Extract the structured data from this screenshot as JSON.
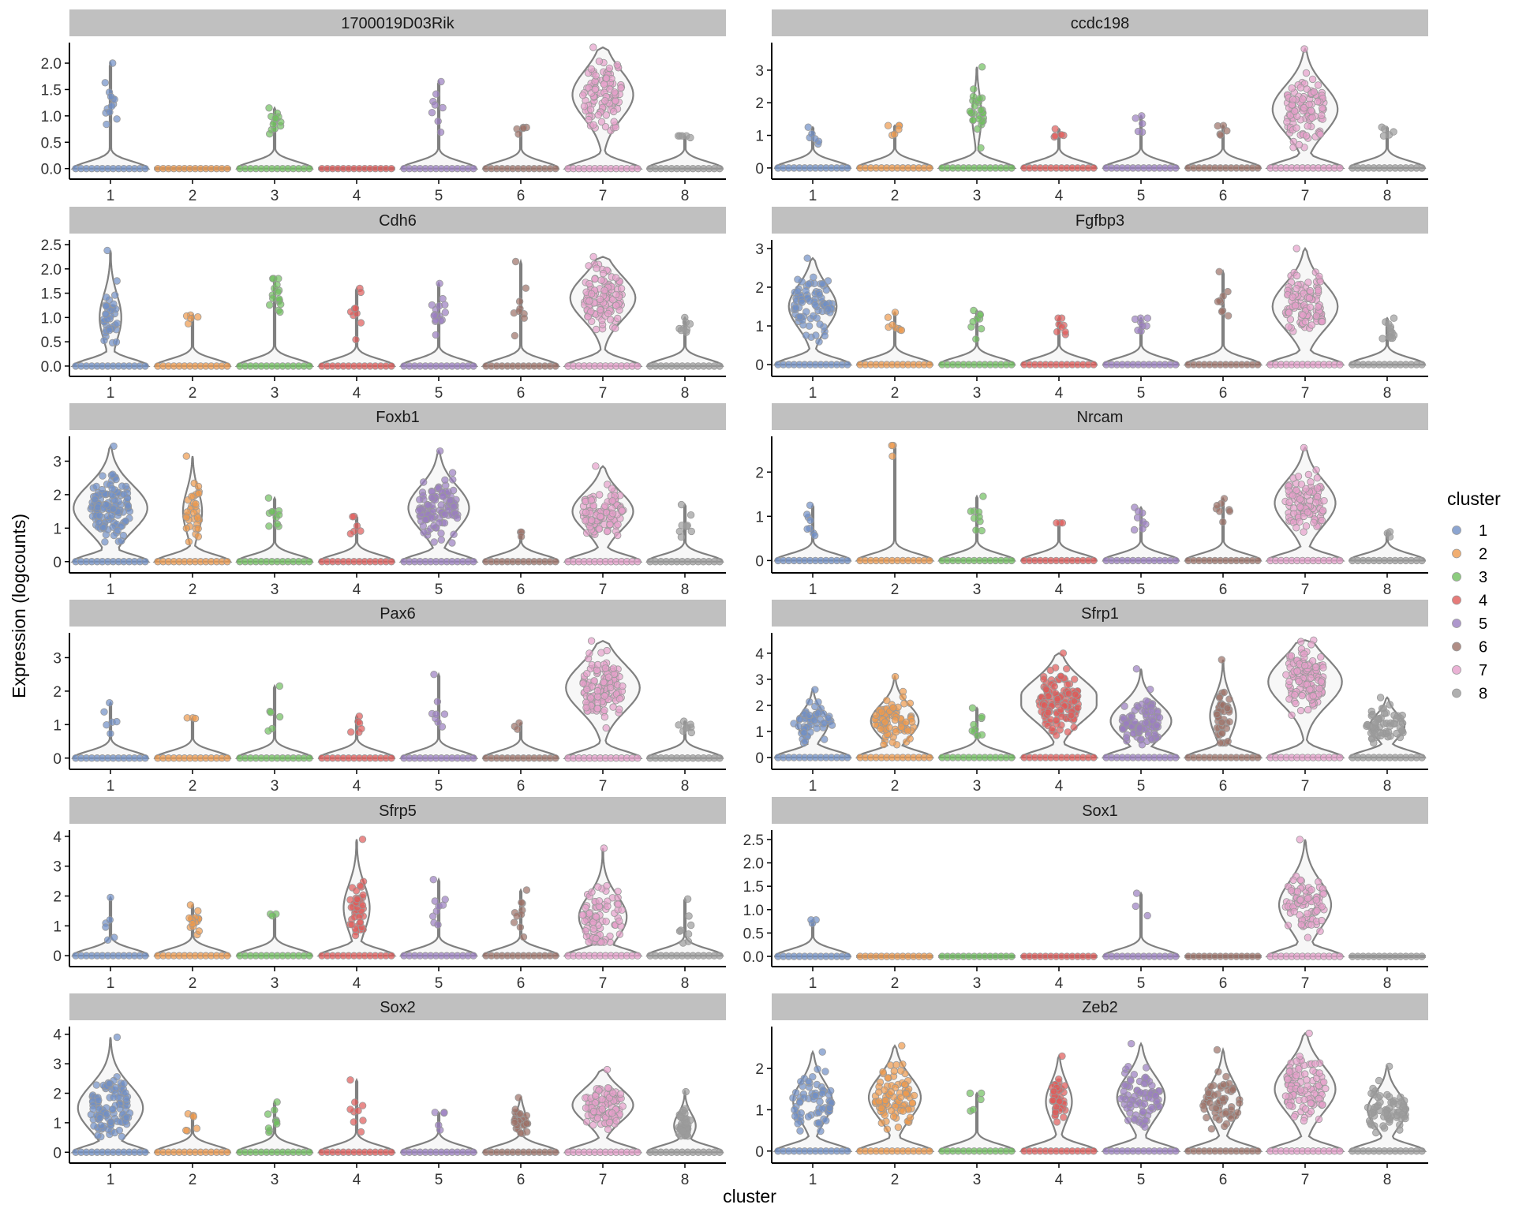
{
  "figure": {
    "ylabel": "Expression (logcounts)",
    "xlabel": "cluster"
  },
  "legend": {
    "title": "cluster",
    "position": "right",
    "items": [
      {
        "label": "1",
        "color": "#6f8fc6"
      },
      {
        "label": "2",
        "color": "#ee9a4d"
      },
      {
        "label": "3",
        "color": "#6fbf5e"
      },
      {
        "label": "4",
        "color": "#e05a58"
      },
      {
        "label": "5",
        "color": "#9a7dc0"
      },
      {
        "label": "6",
        "color": "#9c7067"
      },
      {
        "label": "7",
        "color": "#e59fcb"
      },
      {
        "label": "8",
        "color": "#9b9b9b"
      }
    ]
  },
  "chart_data": [
    {
      "type": "violin",
      "title": "1700019D03Rik",
      "xlabel": "cluster",
      "ylabel": "Expression (logcounts)",
      "categories": [
        "1",
        "2",
        "3",
        "4",
        "5",
        "6",
        "7",
        "8"
      ],
      "ylim": [
        -0.05,
        2.3
      ],
      "yticks": [
        "0.0",
        "0.5",
        "1.0",
        "1.5",
        "2.0"
      ],
      "max_values": [
        2.0,
        0.0,
        1.15,
        0.0,
        1.65,
        0.78,
        2.3,
        0.62
      ],
      "expressing_fraction": [
        0.08,
        0.0,
        0.08,
        0.0,
        0.04,
        0.02,
        0.7,
        0.02
      ],
      "typical_expressed_value": [
        1.1,
        0,
        0.9,
        0,
        1.0,
        0.78,
        1.4,
        0.62
      ]
    },
    {
      "type": "violin",
      "title": "ccdc198",
      "xlabel": "cluster",
      "ylabel": "Expression (logcounts)",
      "categories": [
        "1",
        "2",
        "3",
        "4",
        "5",
        "6",
        "7",
        "8"
      ],
      "ylim": [
        -0.1,
        3.7
      ],
      "yticks": [
        "0",
        "1",
        "2",
        "3"
      ],
      "max_values": [
        1.25,
        1.3,
        3.1,
        1.2,
        1.6,
        1.3,
        3.65,
        1.25
      ],
      "expressing_fraction": [
        0.03,
        0.03,
        0.18,
        0.02,
        0.02,
        0.02,
        0.75,
        0.02
      ],
      "typical_expressed_value": [
        1.0,
        1.1,
        1.6,
        1.1,
        1.3,
        1.2,
        1.8,
        1.1
      ]
    },
    {
      "type": "violin",
      "title": "Cdh6",
      "xlabel": "cluster",
      "ylabel": "Expression (logcounts)",
      "categories": [
        "1",
        "2",
        "3",
        "4",
        "5",
        "6",
        "7",
        "8"
      ],
      "ylim": [
        -0.05,
        2.5
      ],
      "yticks": [
        "0.0",
        "0.5",
        "1.0",
        "1.5",
        "2.0",
        "2.5"
      ],
      "max_values": [
        2.38,
        1.05,
        1.8,
        1.6,
        1.7,
        2.15,
        2.25,
        1.0
      ],
      "expressing_fraction": [
        0.25,
        0.02,
        0.1,
        0.05,
        0.1,
        0.05,
        0.75,
        0.04
      ],
      "typical_expressed_value": [
        1.0,
        1.0,
        1.4,
        1.0,
        1.1,
        1.2,
        1.4,
        0.8
      ]
    },
    {
      "type": "violin",
      "title": "Fgfbp3",
      "xlabel": "cluster",
      "ylabel": "Expression (logcounts)",
      "categories": [
        "1",
        "2",
        "3",
        "4",
        "5",
        "6",
        "7",
        "8"
      ],
      "ylim": [
        -0.1,
        3.1
      ],
      "yticks": [
        "0",
        "1",
        "2",
        "3"
      ],
      "max_values": [
        2.75,
        1.35,
        1.4,
        1.2,
        1.2,
        2.4,
        3.0,
        1.2
      ],
      "expressing_fraction": [
        0.55,
        0.04,
        0.05,
        0.04,
        0.04,
        0.05,
        0.75,
        0.07
      ],
      "typical_expressed_value": [
        1.5,
        1.0,
        1.0,
        1.0,
        1.0,
        1.2,
        1.5,
        0.9
      ]
    },
    {
      "type": "violin",
      "title": "Foxb1",
      "xlabel": "cluster",
      "ylabel": "Expression (logcounts)",
      "categories": [
        "1",
        "2",
        "3",
        "4",
        "5",
        "6",
        "7",
        "8"
      ],
      "ylim": [
        -0.1,
        3.6
      ],
      "yticks": [
        "0",
        "1",
        "2",
        "3"
      ],
      "max_values": [
        3.45,
        3.15,
        1.9,
        1.35,
        3.3,
        0.88,
        2.85,
        1.7
      ],
      "expressing_fraction": [
        0.85,
        0.22,
        0.06,
        0.03,
        0.7,
        0.01,
        0.7,
        0.04
      ],
      "typical_expressed_value": [
        1.6,
        1.5,
        1.3,
        0.9,
        1.6,
        0.88,
        1.5,
        1.0
      ]
    },
    {
      "type": "violin",
      "title": "Nrcam",
      "xlabel": "cluster",
      "ylabel": "Expression (logcounts)",
      "categories": [
        "1",
        "2",
        "3",
        "4",
        "5",
        "6",
        "7",
        "8"
      ],
      "ylim": [
        -0.1,
        2.7
      ],
      "yticks": [
        "0",
        "1",
        "2"
      ],
      "max_values": [
        1.25,
        2.6,
        1.45,
        0.85,
        1.2,
        1.4,
        2.55,
        0.65
      ],
      "expressing_fraction": [
        0.04,
        0.01,
        0.05,
        0.01,
        0.04,
        0.04,
        0.7,
        0.01
      ],
      "typical_expressed_value": [
        0.8,
        2.6,
        0.9,
        0.85,
        0.9,
        1.0,
        1.3,
        0.65
      ]
    },
    {
      "type": "violin",
      "title": "Pax6",
      "xlabel": "cluster",
      "ylabel": "Expression (logcounts)",
      "categories": [
        "1",
        "2",
        "3",
        "4",
        "5",
        "6",
        "7",
        "8"
      ],
      "ylim": [
        -0.1,
        3.6
      ],
      "yticks": [
        "0",
        "1",
        "2",
        "3"
      ],
      "max_values": [
        1.65,
        1.2,
        2.15,
        1.25,
        2.5,
        1.05,
        3.5,
        1.1
      ],
      "expressing_fraction": [
        0.03,
        0.01,
        0.03,
        0.03,
        0.04,
        0.01,
        0.85,
        0.04
      ],
      "typical_expressed_value": [
        1.0,
        1.2,
        1.2,
        0.9,
        1.2,
        1.0,
        2.1,
        0.9
      ]
    },
    {
      "type": "violin",
      "title": "Sfrp1",
      "xlabel": "cluster",
      "ylabel": "Expression (logcounts)",
      "categories": [
        "1",
        "2",
        "3",
        "4",
        "5",
        "6",
        "7",
        "8"
      ],
      "ylim": [
        -0.15,
        4.6
      ],
      "yticks": [
        "0",
        "1",
        "2",
        "3",
        "4"
      ],
      "max_values": [
        2.6,
        3.1,
        1.9,
        4.0,
        3.4,
        3.75,
        4.5,
        2.3
      ],
      "expressing_fraction": [
        0.35,
        0.55,
        0.05,
        0.92,
        0.7,
        0.3,
        0.85,
        0.4
      ],
      "typical_expressed_value": [
        1.3,
        1.4,
        1.0,
        2.2,
        1.4,
        1.6,
        2.9,
        1.2
      ]
    },
    {
      "type": "violin",
      "title": "Sfrp5",
      "xlabel": "cluster",
      "ylabel": "Expression (logcounts)",
      "categories": [
        "1",
        "2",
        "3",
        "4",
        "5",
        "6",
        "7",
        "8"
      ],
      "ylim": [
        -0.1,
        4.05
      ],
      "yticks": [
        "0",
        "1",
        "2",
        "3",
        "4"
      ],
      "max_values": [
        1.95,
        1.7,
        1.4,
        3.9,
        2.55,
        2.2,
        3.6,
        1.9
      ],
      "expressing_fraction": [
        0.03,
        0.1,
        0.01,
        0.3,
        0.05,
        0.06,
        0.55,
        0.04
      ],
      "typical_expressed_value": [
        1.0,
        1.1,
        1.4,
        1.6,
        1.3,
        1.2,
        1.3,
        0.8
      ]
    },
    {
      "type": "violin",
      "title": "Sox1",
      "xlabel": "cluster",
      "ylabel": "Expression (logcounts)",
      "categories": [
        "1",
        "2",
        "3",
        "4",
        "5",
        "6",
        "7",
        "8"
      ],
      "ylim": [
        -0.05,
        2.6
      ],
      "yticks": [
        "0.0",
        "0.5",
        "1.0",
        "1.5",
        "2.0",
        "2.5"
      ],
      "max_values": [
        0.78,
        0.0,
        0.0,
        0.0,
        1.35,
        0.0,
        2.5,
        0.0
      ],
      "expressing_fraction": [
        0.01,
        0.0,
        0.0,
        0.0,
        0.01,
        0.0,
        0.6,
        0.0
      ],
      "typical_expressed_value": [
        0.78,
        0,
        0,
        0,
        1.1,
        0,
        1.1,
        0
      ]
    },
    {
      "type": "violin",
      "title": "Sox2",
      "xlabel": "cluster",
      "ylabel": "Expression (logcounts)",
      "categories": [
        "1",
        "2",
        "3",
        "4",
        "5",
        "6",
        "7",
        "8"
      ],
      "ylim": [
        -0.1,
        4.1
      ],
      "yticks": [
        "0",
        "1",
        "2",
        "3",
        "4"
      ],
      "max_values": [
        3.9,
        1.3,
        1.7,
        2.45,
        1.35,
        1.85,
        2.8,
        2.05
      ],
      "expressing_fraction": [
        0.75,
        0.03,
        0.06,
        0.05,
        0.02,
        0.2,
        0.7,
        0.25
      ],
      "typical_expressed_value": [
        1.5,
        1.0,
        1.0,
        1.2,
        1.0,
        1.1,
        1.6,
        0.9
      ]
    },
    {
      "type": "violin",
      "title": "Zeb2",
      "xlabel": "cluster",
      "ylabel": "Expression (logcounts)",
      "categories": [
        "1",
        "2",
        "3",
        "4",
        "5",
        "6",
        "7",
        "8"
      ],
      "ylim": [
        -0.1,
        2.9
      ],
      "yticks": [
        "0",
        "1",
        "2"
      ],
      "max_values": [
        2.4,
        2.55,
        1.4,
        2.3,
        2.6,
        2.45,
        2.85,
        2.05
      ],
      "expressing_fraction": [
        0.45,
        0.6,
        0.02,
        0.3,
        0.55,
        0.4,
        0.7,
        0.45
      ],
      "typical_expressed_value": [
        1.2,
        1.3,
        1.1,
        1.2,
        1.3,
        1.2,
        1.5,
        1.0
      ]
    }
  ]
}
